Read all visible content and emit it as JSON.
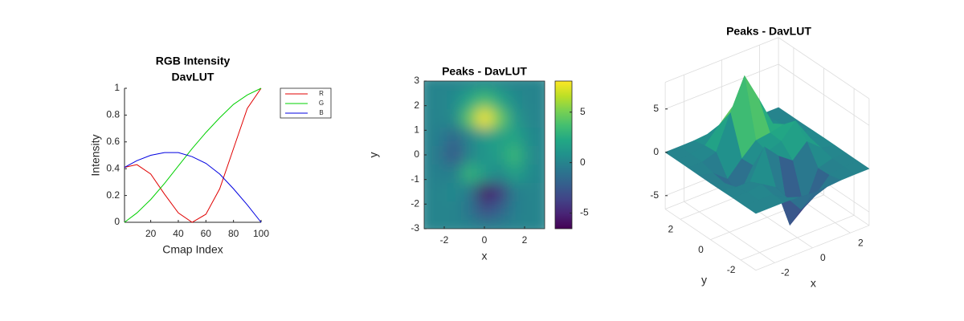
{
  "chart_data": [
    {
      "type": "line",
      "title": [
        "RGB Intensity",
        "DavLUT"
      ],
      "xlabel": "Cmap Index",
      "ylabel": "Intensity",
      "x": [
        1,
        10,
        20,
        30,
        40,
        50,
        60,
        70,
        80,
        90,
        100
      ],
      "series": [
        {
          "name": "R",
          "color": "#e00000",
          "values": [
            0.41,
            0.43,
            0.36,
            0.21,
            0.07,
            0.0,
            0.06,
            0.25,
            0.55,
            0.85,
            1.0
          ]
        },
        {
          "name": "G",
          "color": "#00d000",
          "values": [
            0.0,
            0.07,
            0.17,
            0.29,
            0.42,
            0.55,
            0.67,
            0.78,
            0.88,
            0.95,
            1.0
          ]
        },
        {
          "name": "B",
          "color": "#0000e0",
          "values": [
            0.41,
            0.46,
            0.5,
            0.52,
            0.52,
            0.49,
            0.44,
            0.36,
            0.25,
            0.13,
            0.0
          ]
        }
      ],
      "xlim": [
        1,
        100
      ],
      "xticks": [
        20,
        40,
        60,
        80,
        100
      ],
      "ylim": [
        0,
        1
      ],
      "yticks": [
        0,
        0.2,
        0.4,
        0.6,
        0.8,
        1
      ],
      "legend": "northeastoutside"
    },
    {
      "type": "heatmap",
      "title": "Peaks - DavLUT",
      "xlabel": "x",
      "ylabel": "y",
      "x": [
        -3,
        -2.25,
        -1.5,
        -0.75,
        0,
        0.75,
        1.5,
        2.25,
        3
      ],
      "y": [
        -3,
        -2.25,
        -1.5,
        -0.75,
        0,
        0.75,
        1.5,
        2.25,
        3
      ],
      "z": [
        [
          0,
          0,
          0,
          -0.07,
          -0.25,
          -0.17,
          -0.03,
          0,
          0
        ],
        [
          0,
          0.01,
          0.01,
          -1.0,
          -3.02,
          -2.05,
          -0.35,
          -0.01,
          0
        ],
        [
          0,
          0.03,
          0.33,
          -0.68,
          -5.68,
          -4.32,
          -0.44,
          0.05,
          0
        ],
        [
          -0.02,
          -0.26,
          -0.28,
          3.09,
          1.4,
          0.21,
          1.78,
          0.41,
          0.02
        ],
        [
          -0.04,
          -0.69,
          -2.77,
          0.06,
          0.98,
          1.57,
          3.27,
          0.7,
          0.03
        ],
        [
          -0.02,
          -0.42,
          -1.76,
          -0.05,
          1.42,
          1.65,
          1.99,
          0.41,
          0.02
        ],
        [
          0,
          -0.03,
          0.48,
          4.38,
          8.0,
          4.72,
          1.19,
          0.12,
          0
        ],
        [
          0,
          0.02,
          0.36,
          2.07,
          3.65,
          2.09,
          0.4,
          0.03,
          0
        ],
        [
          0,
          0,
          0.03,
          0.17,
          0.3,
          0.17,
          0.03,
          0,
          0
        ]
      ],
      "xlim": [
        -3,
        3
      ],
      "xticks": [
        -2,
        0,
        2
      ],
      "ylim": [
        -3,
        3
      ],
      "yticks": [
        -3,
        -2,
        -1,
        0,
        1,
        2,
        3
      ],
      "clim": [
        -6.55,
        8.08
      ],
      "cticks": [
        -5,
        0,
        5
      ],
      "colorbar": true
    },
    {
      "type": "surface",
      "title": "Peaks - DavLUT",
      "xlabel": "x",
      "ylabel": "y",
      "x": [
        -3,
        -2.25,
        -1.5,
        -0.75,
        0,
        0.75,
        1.5,
        2.25,
        3
      ],
      "y": [
        -3,
        -2.25,
        -1.5,
        -0.75,
        0,
        0.75,
        1.5,
        2.25,
        3
      ],
      "z": [
        [
          0,
          0,
          0,
          -0.07,
          -0.25,
          -0.17,
          -0.03,
          0,
          0
        ],
        [
          0,
          0.01,
          0.01,
          -1.0,
          -3.02,
          -2.05,
          -0.35,
          -0.01,
          0
        ],
        [
          0,
          0.03,
          0.33,
          -0.68,
          -5.68,
          -4.32,
          -0.44,
          0.05,
          0
        ],
        [
          -0.02,
          -0.26,
          -0.28,
          3.09,
          1.4,
          0.21,
          1.78,
          0.41,
          0.02
        ],
        [
          -0.04,
          -0.69,
          -2.77,
          0.06,
          0.98,
          1.57,
          3.27,
          0.7,
          0.03
        ],
        [
          -0.02,
          -0.42,
          -1.76,
          -0.05,
          1.42,
          1.65,
          1.99,
          0.41,
          0.02
        ],
        [
          0,
          -0.03,
          0.48,
          4.38,
          8.0,
          4.72,
          1.19,
          0.12,
          0
        ],
        [
          0,
          0.02,
          0.36,
          2.07,
          3.65,
          2.09,
          0.4,
          0.03,
          0
        ],
        [
          0,
          0,
          0.03,
          0.17,
          0.3,
          0.17,
          0.03,
          0,
          0
        ]
      ],
      "xlim": [
        -3,
        3
      ],
      "ylim": [
        -3,
        3
      ],
      "zlim": [
        -6.55,
        8.08
      ],
      "xticks": [
        -2,
        0,
        2
      ],
      "yticks": [
        -2,
        0,
        2
      ],
      "zticks": [
        -5,
        0,
        5
      ],
      "grid": true
    }
  ]
}
